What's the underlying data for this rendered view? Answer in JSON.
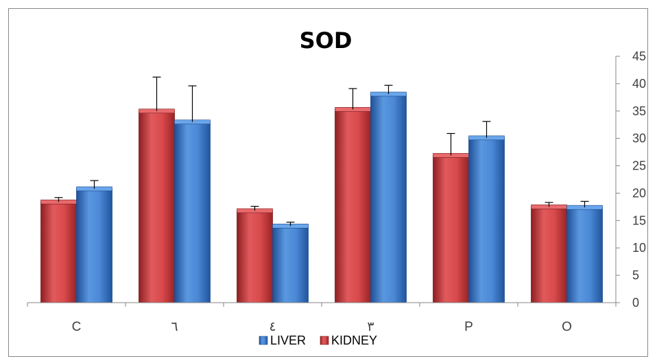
{
  "chart_data": {
    "type": "bar",
    "title": "SOD",
    "xlabel": "",
    "ylabel": "",
    "categories": [
      "C",
      "٦",
      "٤",
      "٣",
      "P",
      "O"
    ],
    "series": [
      {
        "name": "KIDNEY",
        "color": "#c0393b",
        "values": [
          18.4,
          35.0,
          16.8,
          35.3,
          26.9,
          17.5
        ],
        "errors": [
          0.8,
          6.2,
          0.8,
          3.8,
          4.0,
          0.8
        ]
      },
      {
        "name": "LIVER",
        "color": "#3873c4",
        "values": [
          20.8,
          33.0,
          14.0,
          38.1,
          30.1,
          17.4
        ],
        "errors": [
          1.5,
          6.6,
          0.7,
          1.6,
          3.0,
          1.1
        ]
      }
    ],
    "legend_order": [
      "LIVER",
      "KIDNEY"
    ],
    "ylim": [
      0,
      45
    ],
    "yticks": [
      0,
      5,
      10,
      15,
      20,
      25,
      30,
      35,
      40,
      45
    ],
    "y_axis_side": "right",
    "legend_position": "bottom",
    "grid": false
  }
}
